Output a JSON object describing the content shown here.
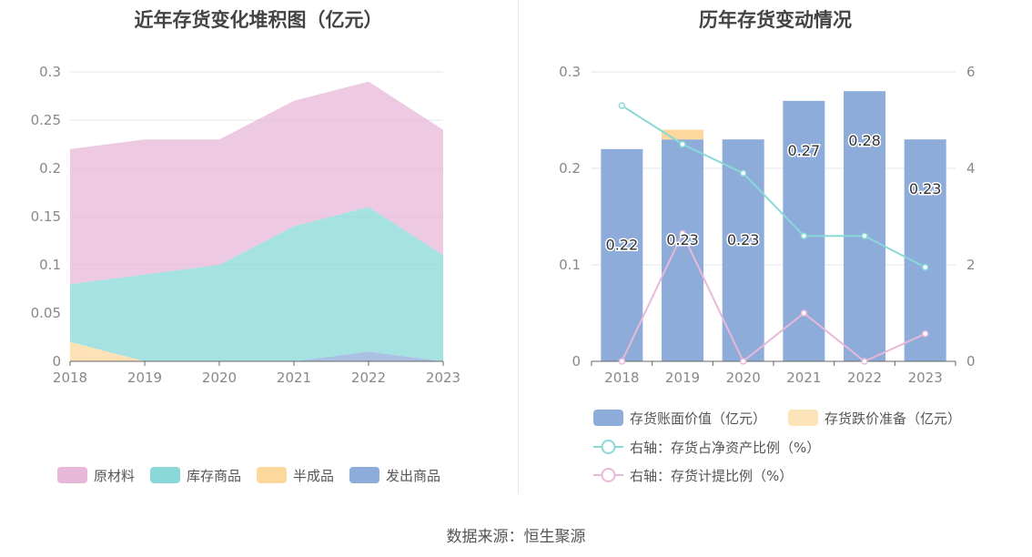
{
  "source_text": "数据来源：恒生聚源",
  "chart_data": [
    {
      "type": "area",
      "title": "近年存货变化堆积图（亿元）",
      "categories": [
        "2018",
        "2019",
        "2020",
        "2021",
        "2022",
        "2023"
      ],
      "stacked": true,
      "ylim": [
        0,
        0.3
      ],
      "yticks": [
        "0",
        "0.05",
        "0.1",
        "0.15",
        "0.2",
        "0.25",
        "0.3"
      ],
      "grid": true,
      "legend_position": "bottom",
      "series": [
        {
          "name": "原材料",
          "color": "#e8b8d8",
          "values": [
            0.14,
            0.14,
            0.13,
            0.13,
            0.13,
            0.13
          ]
        },
        {
          "name": "库存商品",
          "color": "#8ad8d8",
          "values": [
            0.06,
            0.09,
            0.1,
            0.14,
            0.15,
            0.11
          ]
        },
        {
          "name": "半成品",
          "color": "#fdd89c",
          "values": [
            0.02,
            0,
            0,
            0,
            0,
            0
          ]
        },
        {
          "name": "发出商品",
          "color": "#8eacda",
          "values": [
            0,
            0,
            0,
            0,
            0.01,
            0
          ]
        }
      ]
    },
    {
      "type": "bar",
      "title": "历年存货变动情况",
      "categories": [
        "2018",
        "2019",
        "2020",
        "2021",
        "2022",
        "2023"
      ],
      "ylim": [
        0,
        0.3
      ],
      "yticks": [
        "0",
        "0.1",
        "0.2",
        "0.3"
      ],
      "y2lim": [
        0,
        6
      ],
      "y2ticks": [
        "0",
        "2",
        "4",
        "6"
      ],
      "grid": true,
      "legend_position": "bottom",
      "bar_series": [
        {
          "name": "存货账面价值（亿元）",
          "color": "#8eacda",
          "values": [
            0.22,
            0.23,
            0.23,
            0.27,
            0.28,
            0.23
          ],
          "labels": [
            "0.22",
            "0.23",
            "0.23",
            "0.27",
            "0.28",
            "0.23"
          ]
        },
        {
          "name": "存货跌价准备（亿元）",
          "color": "#fde3b8",
          "bar_color": "#fdd89c",
          "values": [
            0,
            0.01,
            0,
            0,
            0,
            0
          ]
        }
      ],
      "line_series": [
        {
          "name": "右轴：存货占净资产比例（%）",
          "color": "#8ad8d8",
          "values": [
            5.3,
            4.5,
            3.9,
            2.6,
            2.6,
            1.95
          ]
        },
        {
          "name": "右轴：存货计提比例（%）",
          "color": "#e8b8d8",
          "values": [
            0,
            2.65,
            0,
            1.0,
            0,
            0.57
          ]
        }
      ]
    }
  ]
}
